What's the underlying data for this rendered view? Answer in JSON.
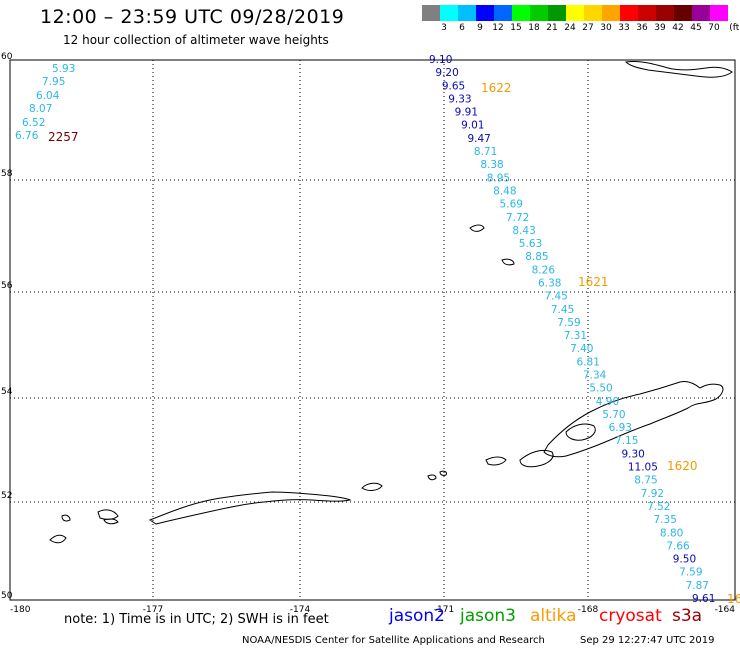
{
  "header": {
    "title": "12:00 – 23:59 UTC 09/28/2019",
    "subtitle": "12 hour collection of altimeter wave heights"
  },
  "legend": {
    "colors": [
      "#808080",
      "#00ffff",
      "#00bfff",
      "#0000ff",
      "#0066ff",
      "#00ff00",
      "#00cc00",
      "#009900",
      "#ffff00",
      "#ffd700",
      "#ffa500",
      "#ff0000",
      "#cc0000",
      "#990000",
      "#660000",
      "#990099",
      "#ff00ff",
      "#ffffff",
      "#000000"
    ],
    "labels": [
      "3",
      "6",
      "9",
      "12",
      "15",
      "18",
      "21",
      "24",
      "27",
      "30",
      "33",
      "36",
      "39",
      "42",
      "45",
      "70",
      "(ft)"
    ]
  },
  "map": {
    "lon_range": [
      -180,
      -164
    ],
    "lat_range": [
      50,
      60
    ],
    "lon_ticks": [
      "-180",
      "-177",
      "-174",
      "-171",
      "-168",
      "-164"
    ],
    "lat_ticks": [
      "60",
      "58",
      "56",
      "54",
      "52",
      "50"
    ]
  },
  "passes": [
    {
      "satellite": "s3a-left",
      "label": "2257",
      "label_color": "#7a0000",
      "readings": [
        {
          "v": "5.93",
          "c": "#29b8e6"
        },
        {
          "v": "7.95",
          "c": "#29b8e6"
        },
        {
          "v": "6.04",
          "c": "#29b8e6"
        },
        {
          "v": "8.07",
          "c": "#29b8e6"
        },
        {
          "v": "6.52",
          "c": "#29b8e6"
        },
        {
          "v": "6.76",
          "c": "#29b8e6"
        }
      ]
    },
    {
      "satellite": "track-1622-1621",
      "label_top": "1622",
      "label_mid": "1621",
      "label_color": "#f39a00",
      "readings": [
        {
          "v": "9.10",
          "c": "#0a0ab4"
        },
        {
          "v": "9.20",
          "c": "#0a0ab4"
        },
        {
          "v": "9.65",
          "c": "#0a0ab4"
        },
        {
          "v": "9.33",
          "c": "#0a0ab4"
        },
        {
          "v": "9.91",
          "c": "#0a0ab4"
        },
        {
          "v": "9.01",
          "c": "#0a0ab4"
        },
        {
          "v": "9.47",
          "c": "#0a0ab4"
        },
        {
          "v": "8.71",
          "c": "#29b8e6"
        },
        {
          "v": "8.38",
          "c": "#29b8e6"
        },
        {
          "v": "8.95",
          "c": "#29b8e6"
        },
        {
          "v": "8.48",
          "c": "#29b8e6"
        },
        {
          "v": "5.69",
          "c": "#29b8e6"
        },
        {
          "v": "7.72",
          "c": "#29b8e6"
        },
        {
          "v": "8.43",
          "c": "#29b8e6"
        },
        {
          "v": "5.63",
          "c": "#29b8e6"
        },
        {
          "v": "8.85",
          "c": "#29b8e6"
        },
        {
          "v": "8.26",
          "c": "#29b8e6"
        },
        {
          "v": "6.38",
          "c": "#29b8e6"
        },
        {
          "v": "7.45",
          "c": "#29b8e6"
        },
        {
          "v": "7.45",
          "c": "#29b8e6"
        },
        {
          "v": "7.59",
          "c": "#29b8e6"
        },
        {
          "v": "7.31",
          "c": "#29b8e6"
        },
        {
          "v": "7.40",
          "c": "#29b8e6"
        },
        {
          "v": "6.81",
          "c": "#29b8e6"
        },
        {
          "v": "7.34",
          "c": "#29b8e6"
        },
        {
          "v": "5.50",
          "c": "#29b8e6"
        },
        {
          "v": "4.90",
          "c": "#29b8e6"
        },
        {
          "v": "5.70",
          "c": "#29b8e6"
        },
        {
          "v": "6.93",
          "c": "#29b8e6"
        },
        {
          "v": "7.15",
          "c": "#29b8e6"
        },
        {
          "v": "9.30",
          "c": "#0a0ab4"
        },
        {
          "v": "11.05",
          "c": "#0a0ab4"
        },
        {
          "v": "8.75",
          "c": "#29b8e6"
        },
        {
          "v": "7.92",
          "c": "#29b8e6"
        },
        {
          "v": "7.52",
          "c": "#29b8e6"
        },
        {
          "v": "7.35",
          "c": "#29b8e6"
        },
        {
          "v": "8.80",
          "c": "#29b8e6"
        },
        {
          "v": "7.66",
          "c": "#29b8e6"
        },
        {
          "v": "9.50",
          "c": "#0a0ab4"
        },
        {
          "v": "7.59",
          "c": "#29b8e6"
        },
        {
          "v": "7.87",
          "c": "#29b8e6"
        },
        {
          "v": "9.61",
          "c": "#0a0ab4"
        }
      ],
      "label_bottom": "1620",
      "label_edge": "16"
    }
  ],
  "footer": {
    "note": "note: 1) Time is in UTC; 2) SWH is in feet",
    "satellites": [
      {
        "name": "jason2",
        "color": "#0000ff"
      },
      {
        "name": "jason3",
        "color": "#00a000"
      },
      {
        "name": "altika",
        "color": "#ff9900"
      },
      {
        "name": "cryosat",
        "color": "#ff0000"
      },
      {
        "name": "s3a",
        "color": "#990000"
      }
    ],
    "credit": "NOAA/NESDIS Center for Satellite Applications and Research",
    "timestamp": "Sep 29 12:27:47 UTC 2019"
  }
}
